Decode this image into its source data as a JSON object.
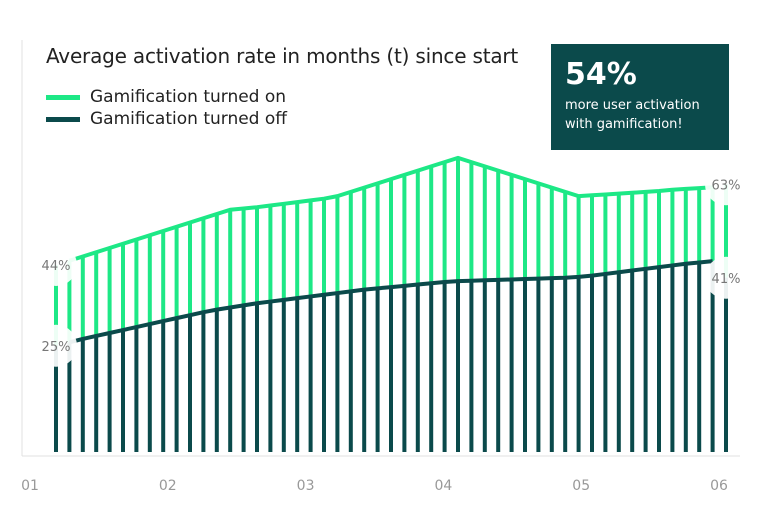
{
  "chart_data": {
    "type": "bar",
    "title": "Average activation rate in months (t) since start",
    "x_ticks": [
      "01",
      "02",
      "03",
      "04",
      "05",
      "06"
    ],
    "xlabel": "",
    "ylabel": "",
    "grid": false,
    "legend_placement": "top-left",
    "series": [
      {
        "name": "Gamification turned on",
        "color": "#1de886",
        "values": [
          44,
          45,
          46,
          47,
          48,
          49,
          50,
          51,
          52,
          53,
          54,
          55,
          56,
          57,
          57.3,
          57.6,
          58,
          58.4,
          58.8,
          59.2,
          59.6,
          60.2,
          61.2,
          62.2,
          63.2,
          64.2,
          65.2,
          66.2,
          67.2,
          68.2,
          69.2,
          68.2,
          67.2,
          66.2,
          65.2,
          64.2,
          63.2,
          62.2,
          61.2,
          60.2,
          60.4,
          60.6,
          60.8,
          61,
          61.2,
          61.4,
          61.7,
          61.9,
          62.1,
          62.3,
          63
        ]
      },
      {
        "name": "Gamification turned off",
        "color": "#0b4a4b",
        "values": [
          25,
          25.8,
          26.6,
          27.3,
          28,
          28.7,
          29.4,
          30.1,
          30.8,
          31.5,
          32.2,
          32.9,
          33.5,
          34,
          34.5,
          35,
          35.4,
          35.8,
          36.2,
          36.6,
          37,
          37.4,
          37.8,
          38.2,
          38.5,
          38.8,
          39.1,
          39.4,
          39.7,
          40,
          40.2,
          40.3,
          40.4,
          40.5,
          40.6,
          40.7,
          40.8,
          40.9,
          41,
          41.2,
          41.5,
          41.9,
          42.3,
          42.7,
          43.1,
          43.5,
          43.9,
          44.3,
          44.6,
          44.9,
          41
        ]
      }
    ],
    "data_labels": {
      "on_start": "44%",
      "on_end": "63%",
      "off_start": "25%",
      "off_end": "41%"
    }
  },
  "legend": {
    "on_label": "Gamification turned on",
    "off_label": "Gamification turned off"
  },
  "callout": {
    "value": "54%",
    "text_line1": "more user activation",
    "text_line2": "with gamification!",
    "background": "#0b4a4b"
  },
  "colors": {
    "on": "#1de886",
    "off": "#0b4a4b",
    "axis": "#d9d9d9",
    "tick_text": "#999999",
    "label_text": "#777777"
  }
}
